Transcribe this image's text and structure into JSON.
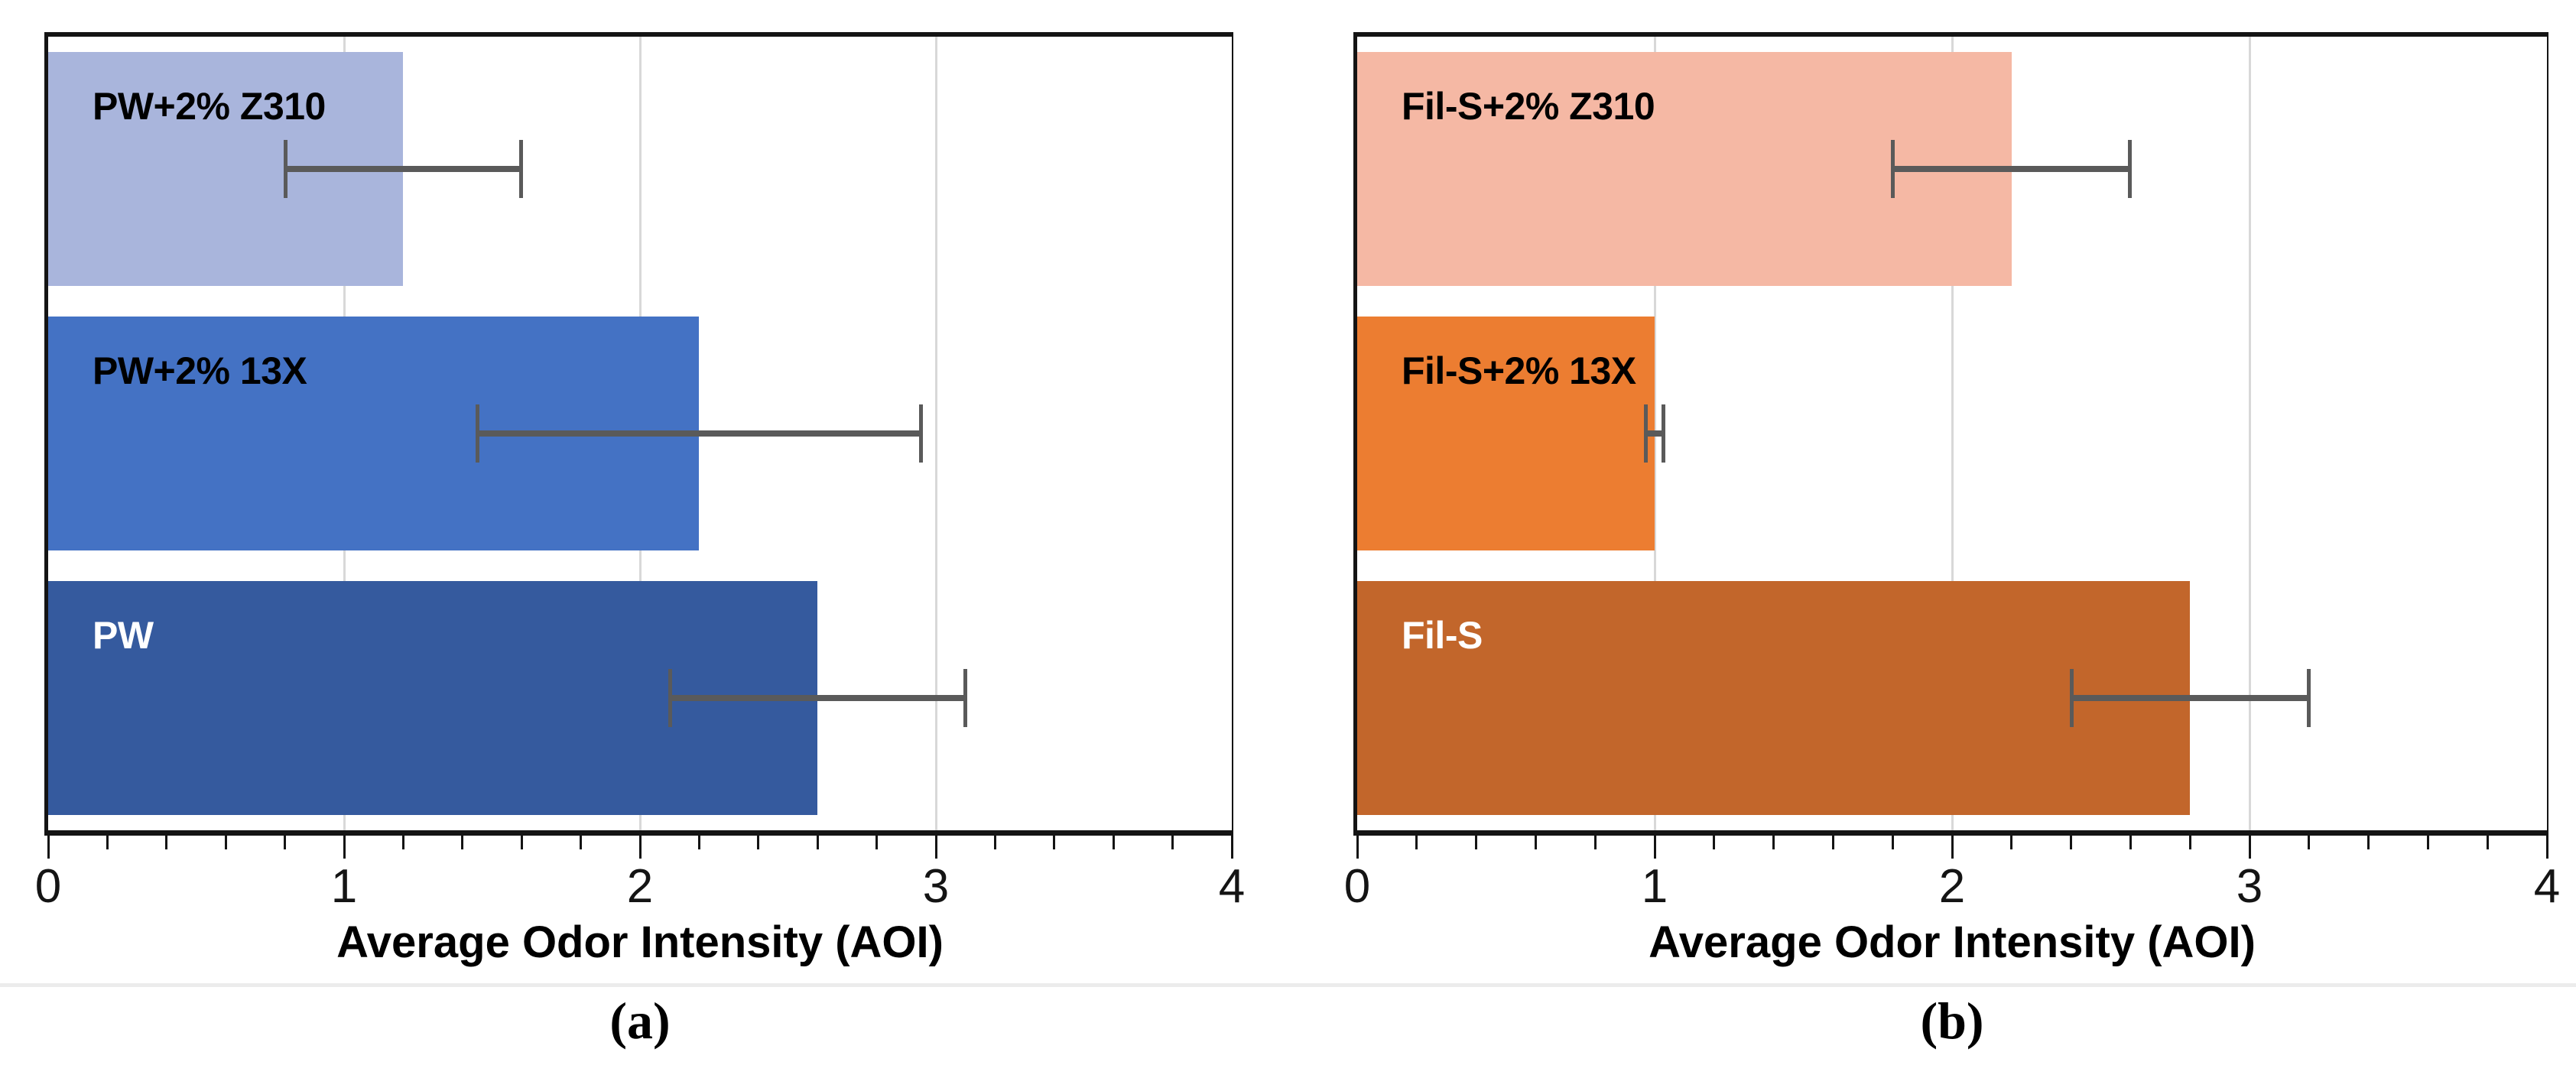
{
  "figure": {
    "background": "#ffffff",
    "axis_color": "#141414",
    "gridline_color": "#d8d8d8",
    "error_bar_color": "#5a5a5a"
  },
  "chart_data": [
    {
      "id": "a",
      "type": "bar",
      "orientation": "horizontal",
      "caption": "(a)",
      "xlabel": "Average Odor Intensity (AOI)",
      "xlim": [
        0,
        4
      ],
      "x_major_ticks": [
        0,
        1,
        2,
        3,
        4
      ],
      "x_minor_tick_step": 0.2,
      "grid": "vertical-major",
      "categories": [
        "PW+2% Z310",
        "PW+2% 13X",
        "PW"
      ],
      "values": [
        1.2,
        2.2,
        2.6
      ],
      "errors": [
        0.4,
        0.75,
        0.5
      ],
      "bar_colors": [
        "#a9b5dc",
        "#4472c4",
        "#355a9e"
      ],
      "label_colors": [
        "#000000",
        "#000000",
        "#ffffff"
      ]
    },
    {
      "id": "b",
      "type": "bar",
      "orientation": "horizontal",
      "caption": "(b)",
      "xlabel": "Average Odor Intensity (AOI)",
      "xlim": [
        0,
        4
      ],
      "x_major_ticks": [
        0,
        1,
        2,
        3,
        4
      ],
      "x_minor_tick_step": 0.2,
      "grid": "vertical-major",
      "categories": [
        "Fil-S+2% Z310",
        "Fil-S+2% 13X",
        "Fil-S"
      ],
      "values": [
        2.2,
        1.0,
        2.8
      ],
      "errors": [
        0.4,
        0.03,
        0.4
      ],
      "bar_colors": [
        "#f5b8a4",
        "#ec7d31",
        "#c2662b"
      ],
      "label_colors": [
        "#000000",
        "#000000",
        "#ffffff"
      ]
    }
  ]
}
